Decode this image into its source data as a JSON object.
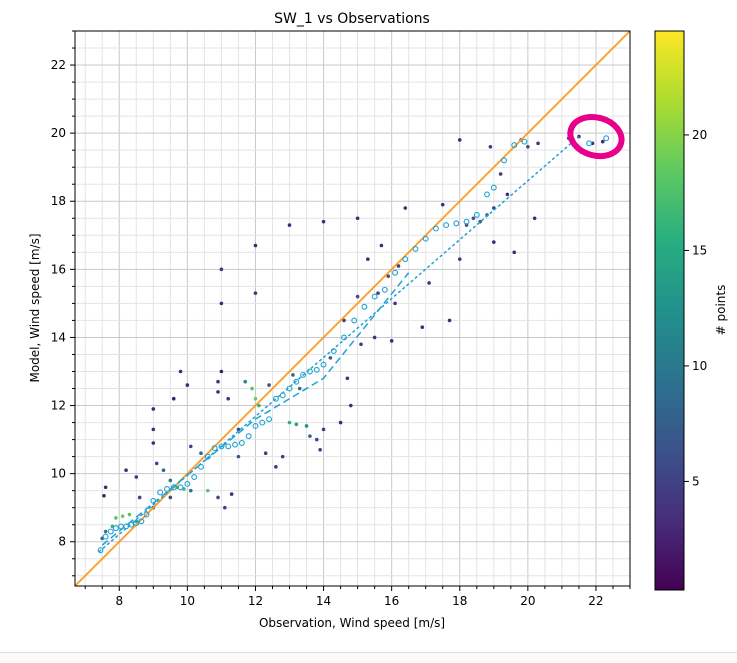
{
  "chart_data": {
    "type": "scatter",
    "title": "SW_1 vs Observations",
    "xlabel": "Observation, Wind speed [m/s]",
    "ylabel": "Model, Wind speed [m/s]",
    "xlim": [
      6.7,
      23.0
    ],
    "ylim": [
      6.7,
      23.0
    ],
    "xticks": [
      8,
      10,
      12,
      14,
      16,
      18,
      20,
      22
    ],
    "yticks": [
      8,
      10,
      12,
      14,
      16,
      18,
      20,
      22
    ],
    "grid": true,
    "colorbar": {
      "label": "# points",
      "range": [
        0.3,
        24.5
      ],
      "ticks": [
        5,
        10,
        15,
        20
      ],
      "colormap": "viridis"
    },
    "lines": [
      {
        "name": "1:1 line",
        "style": "solid",
        "color": "#ff9a1f",
        "x": [
          6.7,
          23.0
        ],
        "y": [
          6.7,
          23.0
        ]
      },
      {
        "name": "linear fit",
        "style": "dotted",
        "color": "#1fa2d6",
        "x": [
          7.4,
          21.5
        ],
        "y": [
          7.7,
          19.9
        ]
      },
      {
        "name": "qq trend",
        "style": "dashed",
        "color": "#1fa2d6",
        "x": [
          7.5,
          12.0,
          14.0,
          16.5
        ],
        "y": [
          7.9,
          11.6,
          12.8,
          15.9
        ]
      }
    ],
    "qq_points": {
      "x": [
        7.45,
        7.6,
        7.75,
        7.9,
        8.05,
        8.2,
        8.35,
        8.5,
        8.65,
        8.8,
        9.0,
        9.2,
        9.4,
        9.6,
        9.8,
        10.0,
        10.2,
        10.4,
        10.6,
        10.8,
        11.0,
        11.2,
        11.4,
        11.6,
        11.8,
        12.0,
        12.2,
        12.4,
        12.6,
        12.8,
        13.0,
        13.2,
        13.4,
        13.6,
        13.8,
        14.0,
        14.3,
        14.6,
        14.9,
        15.2,
        15.5,
        15.8,
        16.1,
        16.4,
        16.7,
        17.0,
        17.3,
        17.6,
        17.9,
        18.2,
        18.5,
        18.8,
        19.0,
        19.3,
        19.6,
        19.9,
        21.3,
        21.8,
        22.3
      ],
      "y": [
        7.75,
        8.15,
        8.3,
        8.4,
        8.45,
        8.45,
        8.5,
        8.55,
        8.6,
        8.8,
        9.2,
        9.45,
        9.55,
        9.6,
        9.6,
        9.7,
        9.9,
        10.2,
        10.5,
        10.75,
        10.8,
        10.8,
        10.85,
        10.9,
        11.1,
        11.4,
        11.5,
        11.6,
        12.2,
        12.3,
        12.5,
        12.7,
        12.9,
        13.0,
        13.05,
        13.2,
        13.6,
        14.0,
        14.5,
        14.9,
        15.2,
        15.4,
        15.9,
        16.3,
        16.6,
        16.9,
        17.2,
        17.3,
        17.35,
        17.4,
        17.6,
        18.2,
        18.4,
        19.2,
        19.65,
        19.75,
        19.8,
        19.7,
        19.85
      ]
    },
    "scatter_density": [
      {
        "x": 7.5,
        "y": 8.1,
        "count": 8
      },
      {
        "x": 7.6,
        "y": 8.3,
        "count": 10
      },
      {
        "x": 7.8,
        "y": 8.45,
        "count": 16
      },
      {
        "x": 7.9,
        "y": 8.7,
        "count": 18
      },
      {
        "x": 8.1,
        "y": 8.75,
        "count": 19
      },
      {
        "x": 8.3,
        "y": 8.8,
        "count": 18
      },
      {
        "x": 8.5,
        "y": 8.6,
        "count": 14
      },
      {
        "x": 8.2,
        "y": 10.1,
        "count": 3
      },
      {
        "x": 8.5,
        "y": 9.9,
        "count": 4
      },
      {
        "x": 8.6,
        "y": 9.3,
        "count": 5
      },
      {
        "x": 7.6,
        "y": 9.6,
        "count": 3
      },
      {
        "x": 7.55,
        "y": 9.35,
        "count": 2
      },
      {
        "x": 9.0,
        "y": 11.9,
        "count": 3
      },
      {
        "x": 9.0,
        "y": 11.3,
        "count": 3
      },
      {
        "x": 9.0,
        "y": 10.9,
        "count": 3
      },
      {
        "x": 9.1,
        "y": 10.3,
        "count": 5
      },
      {
        "x": 9.3,
        "y": 10.1,
        "count": 8
      },
      {
        "x": 9.5,
        "y": 9.8,
        "count": 10
      },
      {
        "x": 9.7,
        "y": 9.6,
        "count": 16
      },
      {
        "x": 9.9,
        "y": 9.55,
        "count": 17
      },
      {
        "x": 10.1,
        "y": 9.5,
        "count": 9
      },
      {
        "x": 9.5,
        "y": 9.3,
        "count": 6
      },
      {
        "x": 9.0,
        "y": 9.0,
        "count": 8
      },
      {
        "x": 9.6,
        "y": 12.2,
        "count": 2
      },
      {
        "x": 9.8,
        "y": 13.0,
        "count": 3
      },
      {
        "x": 10.0,
        "y": 12.6,
        "count": 3
      },
      {
        "x": 10.1,
        "y": 10.8,
        "count": 5
      },
      {
        "x": 10.4,
        "y": 10.6,
        "count": 8
      },
      {
        "x": 10.6,
        "y": 9.5,
        "count": 18
      },
      {
        "x": 10.9,
        "y": 9.3,
        "count": 6
      },
      {
        "x": 11.1,
        "y": 9.0,
        "count": 5
      },
      {
        "x": 11.3,
        "y": 9.4,
        "count": 4
      },
      {
        "x": 10.9,
        "y": 12.7,
        "count": 4
      },
      {
        "x": 10.9,
        "y": 12.4,
        "count": 3
      },
      {
        "x": 11.0,
        "y": 13.0,
        "count": 2
      },
      {
        "x": 11.0,
        "y": 16.0,
        "count": 4
      },
      {
        "x": 11.0,
        "y": 15.0,
        "count": 3
      },
      {
        "x": 11.2,
        "y": 12.2,
        "count": 4
      },
      {
        "x": 11.5,
        "y": 11.3,
        "count": 6
      },
      {
        "x": 11.5,
        "y": 10.5,
        "count": 7
      },
      {
        "x": 11.7,
        "y": 12.7,
        "count": 11
      },
      {
        "x": 11.9,
        "y": 12.5,
        "count": 18
      },
      {
        "x": 12.0,
        "y": 12.2,
        "count": 19
      },
      {
        "x": 12.1,
        "y": 12.0,
        "count": 16
      },
      {
        "x": 12.0,
        "y": 16.7,
        "count": 3
      },
      {
        "x": 12.0,
        "y": 15.3,
        "count": 4
      },
      {
        "x": 12.3,
        "y": 10.6,
        "count": 5
      },
      {
        "x": 12.6,
        "y": 10.2,
        "count": 4
      },
      {
        "x": 12.4,
        "y": 12.6,
        "count": 7
      },
      {
        "x": 12.8,
        "y": 10.5,
        "count": 5
      },
      {
        "x": 13.0,
        "y": 11.5,
        "count": 16
      },
      {
        "x": 13.2,
        "y": 11.45,
        "count": 14
      },
      {
        "x": 13.0,
        "y": 17.3,
        "count": 3
      },
      {
        "x": 13.1,
        "y": 12.9,
        "count": 8
      },
      {
        "x": 13.3,
        "y": 12.5,
        "count": 9
      },
      {
        "x": 13.5,
        "y": 11.4,
        "count": 12
      },
      {
        "x": 13.6,
        "y": 11.1,
        "count": 8
      },
      {
        "x": 13.8,
        "y": 11.0,
        "count": 6
      },
      {
        "x": 13.9,
        "y": 10.7,
        "count": 5
      },
      {
        "x": 14.0,
        "y": 17.4,
        "count": 3
      },
      {
        "x": 14.2,
        "y": 13.4,
        "count": 7
      },
      {
        "x": 14.0,
        "y": 11.3,
        "count": 4
      },
      {
        "x": 14.5,
        "y": 11.5,
        "count": 3
      },
      {
        "x": 14.6,
        "y": 14.5,
        "count": 5
      },
      {
        "x": 14.7,
        "y": 12.8,
        "count": 4
      },
      {
        "x": 14.8,
        "y": 12.0,
        "count": 3
      },
      {
        "x": 15.0,
        "y": 17.5,
        "count": 3
      },
      {
        "x": 15.0,
        "y": 15.2,
        "count": 6
      },
      {
        "x": 15.1,
        "y": 13.8,
        "count": 5
      },
      {
        "x": 15.3,
        "y": 16.3,
        "count": 3
      },
      {
        "x": 15.6,
        "y": 15.3,
        "count": 5
      },
      {
        "x": 15.7,
        "y": 16.7,
        "count": 3
      },
      {
        "x": 15.9,
        "y": 15.8,
        "count": 6
      },
      {
        "x": 15.5,
        "y": 14.0,
        "count": 4
      },
      {
        "x": 16.0,
        "y": 13.9,
        "count": 3
      },
      {
        "x": 16.2,
        "y": 16.1,
        "count": 5
      },
      {
        "x": 16.1,
        "y": 15.0,
        "count": 4
      },
      {
        "x": 16.4,
        "y": 17.8,
        "count": 3
      },
      {
        "x": 16.9,
        "y": 14.3,
        "count": 3
      },
      {
        "x": 17.1,
        "y": 15.6,
        "count": 4
      },
      {
        "x": 17.5,
        "y": 17.9,
        "count": 3
      },
      {
        "x": 17.7,
        "y": 14.5,
        "count": 3
      },
      {
        "x": 18.0,
        "y": 19.8,
        "count": 3
      },
      {
        "x": 18.0,
        "y": 16.3,
        "count": 4
      },
      {
        "x": 18.2,
        "y": 17.3,
        "count": 6
      },
      {
        "x": 18.4,
        "y": 17.5,
        "count": 7
      },
      {
        "x": 18.6,
        "y": 17.4,
        "count": 8
      },
      {
        "x": 18.8,
        "y": 17.6,
        "count": 10
      },
      {
        "x": 18.9,
        "y": 19.6,
        "count": 4
      },
      {
        "x": 19.0,
        "y": 17.8,
        "count": 5
      },
      {
        "x": 19.0,
        "y": 16.8,
        "count": 3
      },
      {
        "x": 19.2,
        "y": 18.8,
        "count": 4
      },
      {
        "x": 19.4,
        "y": 18.2,
        "count": 3
      },
      {
        "x": 19.6,
        "y": 16.5,
        "count": 3
      },
      {
        "x": 19.8,
        "y": 19.8,
        "count": 5
      },
      {
        "x": 20.0,
        "y": 19.6,
        "count": 6
      },
      {
        "x": 20.2,
        "y": 17.5,
        "count": 3
      },
      {
        "x": 20.3,
        "y": 19.7,
        "count": 4
      },
      {
        "x": 21.2,
        "y": 19.85,
        "count": 4
      },
      {
        "x": 21.5,
        "y": 19.9,
        "count": 3
      },
      {
        "x": 21.9,
        "y": 19.7,
        "count": 3
      },
      {
        "x": 22.2,
        "y": 19.75,
        "count": 3
      }
    ],
    "annotation": {
      "shape": "hand-drawn ellipse",
      "color": "#e8008a",
      "center_x": 22.0,
      "center_y": 19.9
    }
  }
}
